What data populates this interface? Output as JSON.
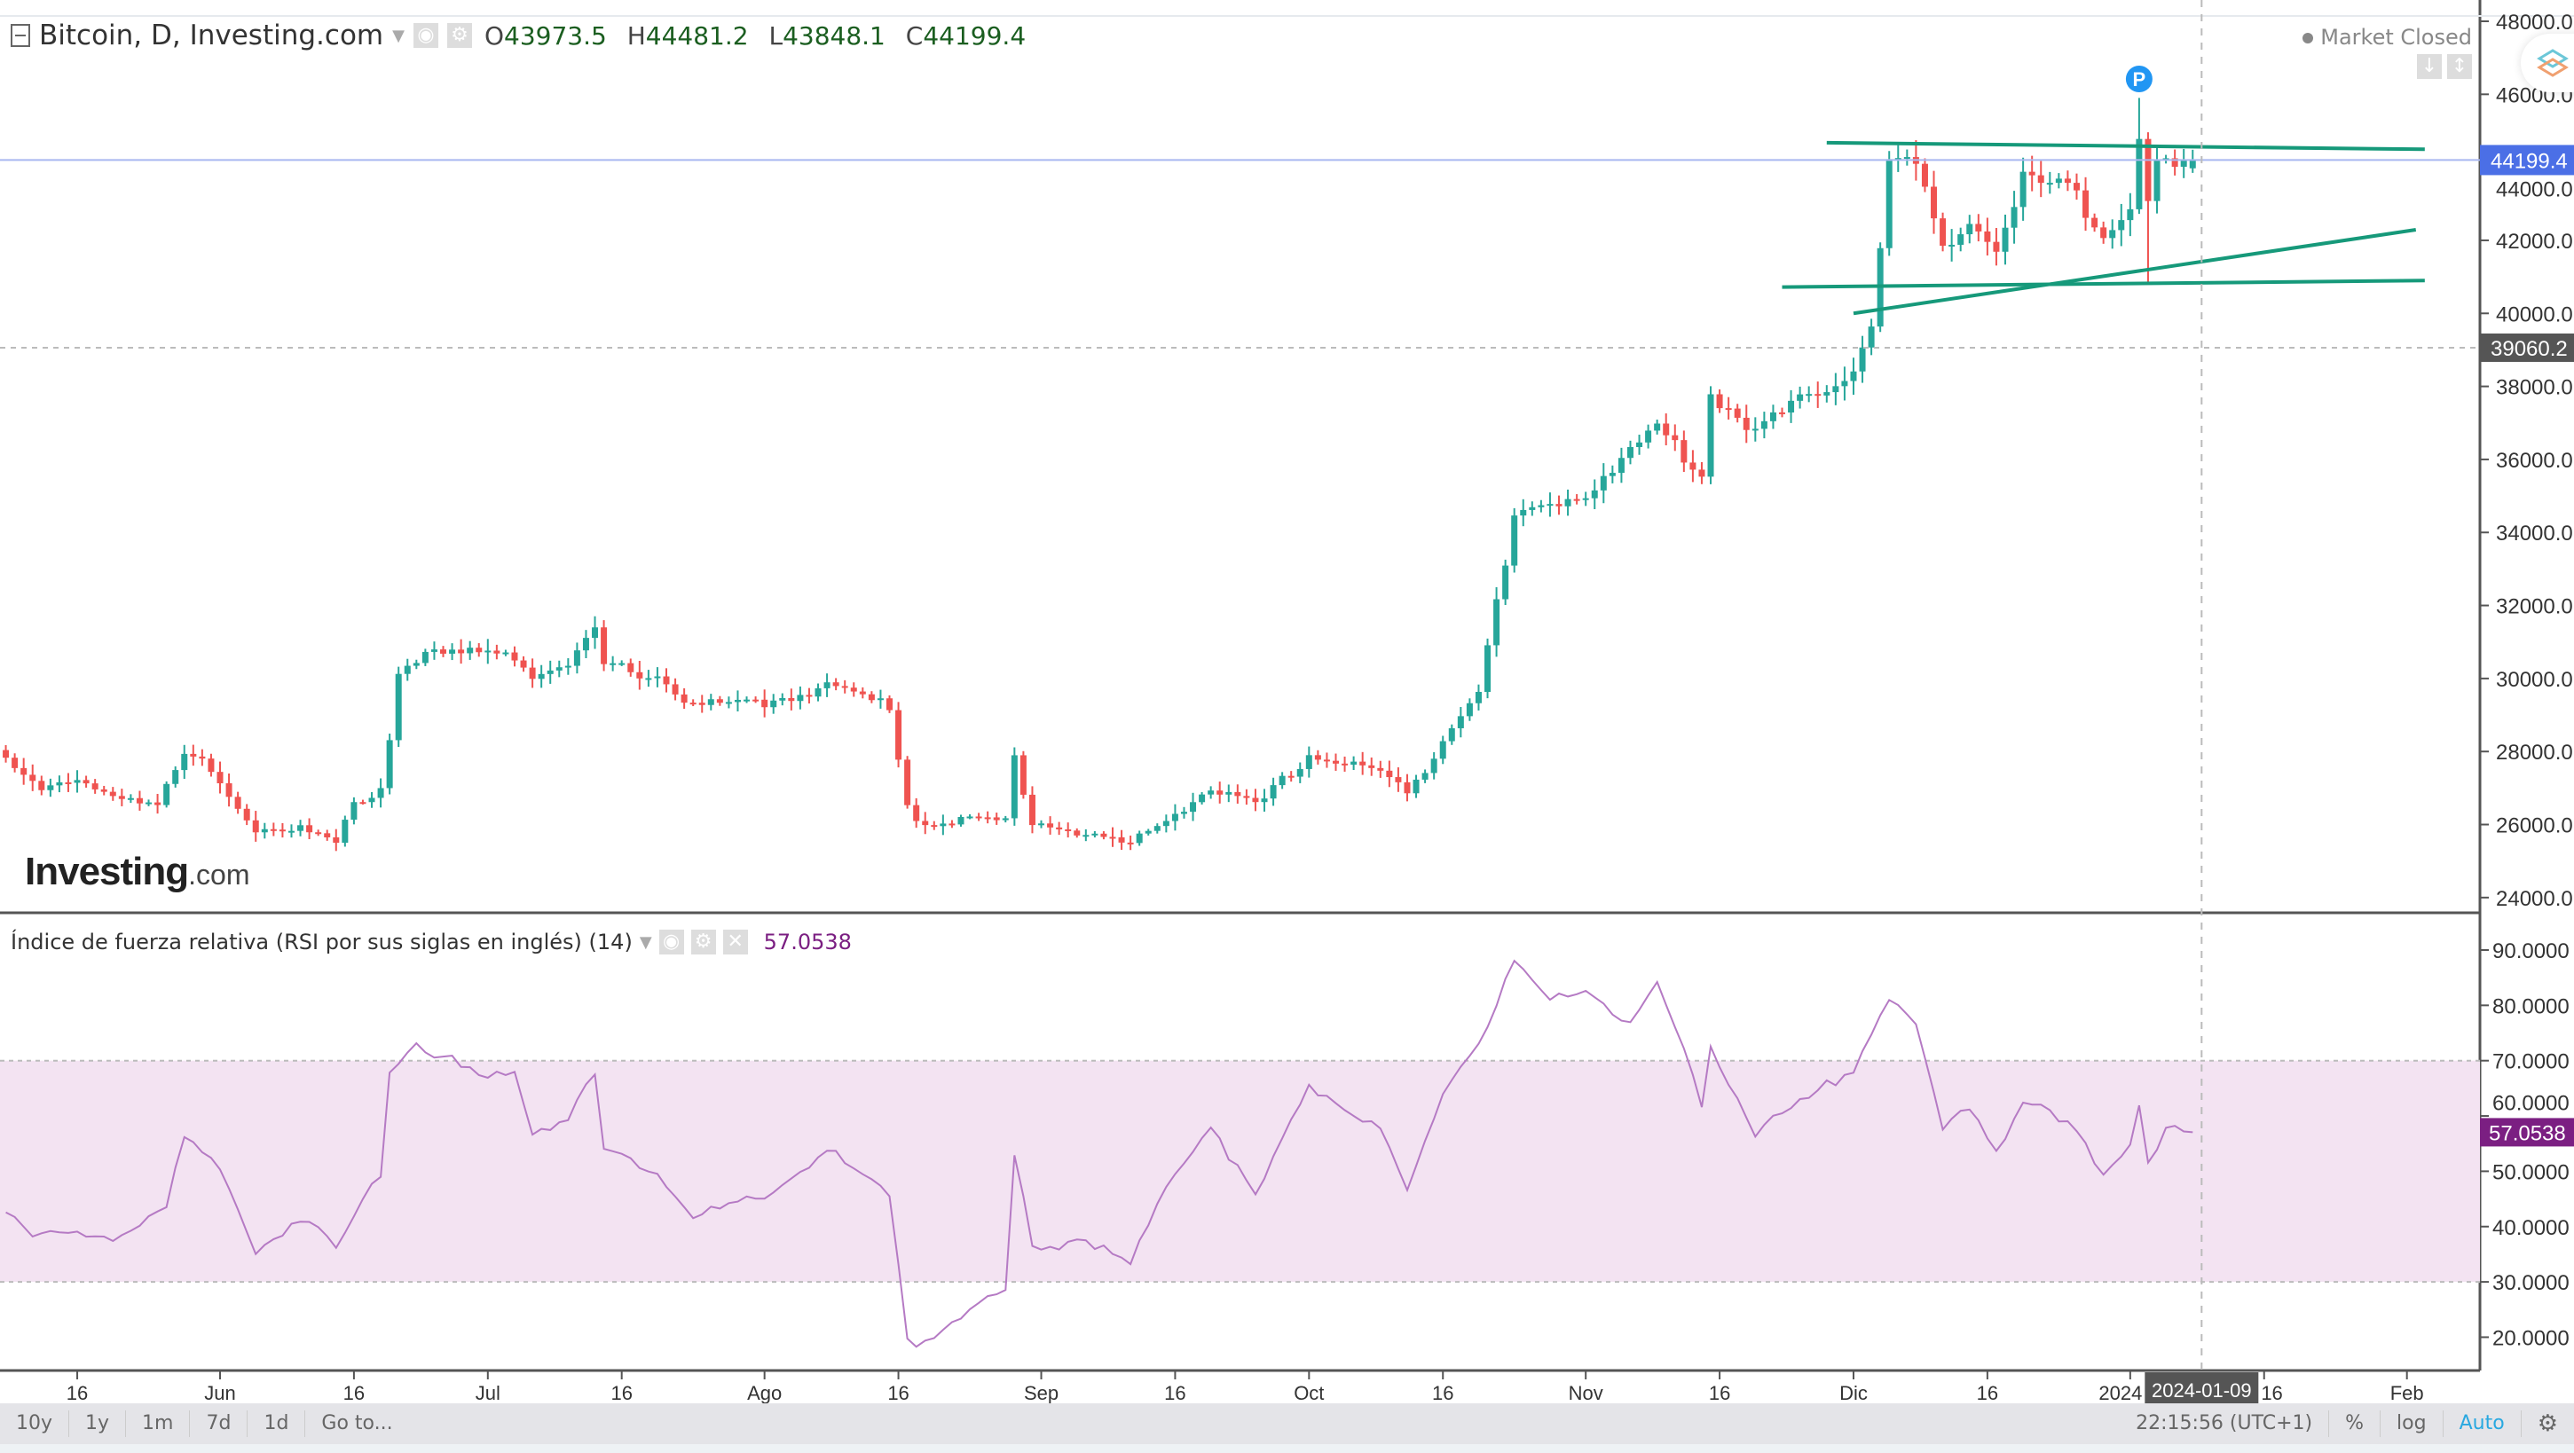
{
  "header": {
    "title": "Bitcoin, D, Investing.com",
    "open_label": "O",
    "open": "43973.5",
    "high_label": "H",
    "high": "44481.2",
    "low_label": "L",
    "low": "43848.1",
    "close_label": "C",
    "close": "44199.4"
  },
  "status": {
    "market": "Market Closed"
  },
  "logo": {
    "brand": "Investing",
    "suffix": ".com"
  },
  "rsi_header": {
    "title": "Índice de fuerza relativa (RSI por sus siglas en inglés) (14)",
    "value": "57.0538"
  },
  "toolbar": {
    "ranges": [
      "10y",
      "1y",
      "1m",
      "7d",
      "1d"
    ],
    "goto": "Go to...",
    "clock": "22:15:56 (UTC+1)",
    "percent": "%",
    "log": "log",
    "auto": "Auto"
  },
  "colors": {
    "up": "#26a69a",
    "down": "#ef5350",
    "trend": "#16997a",
    "rsi_line": "#b57ac4",
    "rsi_band": "#f3e3f2",
    "last_price": "#4b6fe6",
    "crosshair_price": "#555555"
  },
  "chart_data": {
    "type": "candlestick",
    "title": "Bitcoin, D, Investing.com",
    "price_axis": {
      "ticks": [
        24000,
        26000,
        28000,
        30000,
        32000,
        34000,
        36000,
        38000,
        40000,
        42000,
        44000,
        46000,
        48000
      ],
      "ylim": [
        23700,
        48500
      ]
    },
    "last_price": "44199.4",
    "crosshair_price": "39060.2",
    "crosshair_date": "2024-01-09",
    "last_candle": {
      "date": "2024-01-08",
      "open": 43973.5,
      "high": 44481.2,
      "low": 43848.1,
      "close": 44199.4
    },
    "close_anchors": [
      [
        "2023-05-08",
        27900
      ],
      [
        "2023-05-10",
        27460
      ],
      [
        "2023-05-12",
        26900
      ],
      [
        "2023-05-16",
        27100
      ],
      [
        "2023-05-20",
        26900
      ],
      [
        "2023-05-25",
        26560
      ],
      [
        "2023-05-28",
        27800
      ],
      [
        "2023-05-30",
        27700
      ],
      [
        "2023-06-01",
        27100
      ],
      [
        "2023-06-05",
        25900
      ],
      [
        "2023-06-10",
        25900
      ],
      [
        "2023-06-14",
        25440
      ],
      [
        "2023-06-16",
        26560
      ],
      [
        "2023-06-19",
        27000
      ],
      [
        "2023-06-20",
        28360
      ],
      [
        "2023-06-21",
        30150
      ],
      [
        "2023-06-23",
        30600
      ],
      [
        "2023-07-01",
        30700
      ],
      [
        "2023-07-03",
        30830
      ],
      [
        "2023-07-06",
        30150
      ],
      [
        "2023-07-10",
        30300
      ],
      [
        "2023-07-13",
        31280
      ],
      [
        "2023-07-14",
        30380
      ],
      [
        "2023-07-20",
        30060
      ],
      [
        "2023-07-24",
        29250
      ],
      [
        "2023-08-01",
        29340
      ],
      [
        "2023-08-08",
        29800
      ],
      [
        "2023-08-15",
        29250
      ],
      [
        "2023-08-17",
        26560
      ],
      [
        "2023-08-18",
        26100
      ],
      [
        "2023-08-28",
        26100
      ],
      [
        "2023-08-29",
        27800
      ],
      [
        "2023-08-31",
        26100
      ],
      [
        "2023-09-11",
        25440
      ],
      [
        "2023-09-16",
        26330
      ],
      [
        "2023-09-20",
        27000
      ],
      [
        "2023-09-25",
        26470
      ],
      [
        "2023-10-01",
        27900
      ],
      [
        "2023-10-09",
        27460
      ],
      [
        "2023-10-12",
        26790
      ],
      [
        "2023-10-16",
        28360
      ],
      [
        "2023-10-20",
        29800
      ],
      [
        "2023-10-23",
        33080
      ],
      [
        "2023-10-24",
        34420
      ],
      [
        "2023-11-01",
        35100
      ],
      [
        "2023-11-09",
        36900
      ],
      [
        "2023-11-14",
        35550
      ],
      [
        "2023-11-15",
        37800
      ],
      [
        "2023-11-20",
        36800
      ],
      [
        "2023-11-25",
        37570
      ],
      [
        "2023-12-01",
        38470
      ],
      [
        "2023-12-03",
        39820
      ],
      [
        "2023-12-04",
        41840
      ],
      [
        "2023-12-05",
        44090
      ],
      [
        "2023-12-08",
        44090
      ],
      [
        "2023-12-11",
        41620
      ],
      [
        "2023-12-14",
        42520
      ],
      [
        "2023-12-17",
        41840
      ],
      [
        "2023-12-20",
        43640
      ],
      [
        "2023-12-25",
        43410
      ],
      [
        "2023-12-29",
        42300
      ],
      [
        "2024-01-01",
        42970
      ],
      [
        "2024-01-02",
        44900
      ],
      [
        "2024-01-03",
        42970
      ],
      [
        "2024-01-04",
        44090
      ],
      [
        "2024-01-05",
        44000
      ],
      [
        "2024-01-07",
        43973.5
      ]
    ],
    "trend_lines": [
      {
        "from": [
          "2023-11-28",
          44674
        ],
        "to": [
          "2024-02-03",
          44494
        ]
      },
      {
        "from": [
          "2023-12-01",
          40000
        ],
        "to": [
          "2024-02-02",
          42290
        ]
      },
      {
        "from": [
          "2023-11-23",
          40720
        ],
        "to": [
          "2024-02-03",
          40900
        ]
      }
    ],
    "marker": {
      "date": "2024-01-02",
      "label": "P"
    },
    "x_ticks": [
      [
        "2023-05-16",
        "16"
      ],
      [
        "2023-06-01",
        "Jun"
      ],
      [
        "2023-06-16",
        "16"
      ],
      [
        "2023-07-01",
        "Jul"
      ],
      [
        "2023-07-16",
        "16"
      ],
      [
        "2023-08-01",
        "Ago"
      ],
      [
        "2023-08-16",
        "16"
      ],
      [
        "2023-09-01",
        "Sep"
      ],
      [
        "2023-09-16",
        "16"
      ],
      [
        "2023-10-01",
        "Oct"
      ],
      [
        "2023-10-16",
        "16"
      ],
      [
        "2023-11-01",
        "Nov"
      ],
      [
        "2023-11-16",
        "16"
      ],
      [
        "2023-12-01",
        "Dic"
      ],
      [
        "2023-12-16",
        "16"
      ],
      [
        "2024-01-01",
        "2024"
      ],
      [
        "2024-01-16",
        "16"
      ],
      [
        "2024-02-01",
        "Feb"
      ]
    ],
    "rsi": {
      "period": 14,
      "ticks": [
        20,
        30,
        40,
        50,
        60,
        70,
        80,
        90
      ],
      "band": [
        30,
        70
      ],
      "value": "57.0538",
      "anchors": [
        [
          "2023-05-08",
          43
        ],
        [
          "2023-05-12",
          38
        ],
        [
          "2023-05-20",
          38
        ],
        [
          "2023-05-26",
          44
        ],
        [
          "2023-05-28",
          56
        ],
        [
          "2023-06-01",
          50
        ],
        [
          "2023-06-05",
          35.5
        ],
        [
          "2023-06-10",
          42
        ],
        [
          "2023-06-14",
          36
        ],
        [
          "2023-06-19",
          50
        ],
        [
          "2023-06-20",
          69
        ],
        [
          "2023-06-23",
          73.4
        ],
        [
          "2023-07-01",
          66
        ],
        [
          "2023-07-04",
          69
        ],
        [
          "2023-07-06",
          57
        ],
        [
          "2023-07-10",
          60
        ],
        [
          "2023-07-13",
          67.4
        ],
        [
          "2023-07-14",
          54
        ],
        [
          "2023-07-20",
          50
        ],
        [
          "2023-07-24",
          42
        ],
        [
          "2023-08-01",
          45
        ],
        [
          "2023-08-08",
          54
        ],
        [
          "2023-08-15",
          45
        ],
        [
          "2023-08-17",
          20
        ],
        [
          "2023-08-18",
          19
        ],
        [
          "2023-08-22",
          23
        ],
        [
          "2023-08-28",
          28
        ],
        [
          "2023-08-29",
          52.8
        ],
        [
          "2023-08-31",
          36
        ],
        [
          "2023-09-06",
          38
        ],
        [
          "2023-09-11",
          33
        ],
        [
          "2023-09-16",
          50
        ],
        [
          "2023-09-20",
          58.8
        ],
        [
          "2023-09-25",
          45
        ],
        [
          "2023-10-01",
          66
        ],
        [
          "2023-10-09",
          57
        ],
        [
          "2023-10-12",
          45.6
        ],
        [
          "2023-10-16",
          64.5
        ],
        [
          "2023-10-20",
          73.4
        ],
        [
          "2023-10-24",
          87.3
        ],
        [
          "2023-10-28",
          80
        ],
        [
          "2023-11-01",
          83.8
        ],
        [
          "2023-11-06",
          76
        ],
        [
          "2023-11-09",
          84
        ],
        [
          "2023-11-14",
          62.4
        ],
        [
          "2023-11-15",
          73
        ],
        [
          "2023-11-20",
          57
        ],
        [
          "2023-11-25",
          62
        ],
        [
          "2023-12-01",
          69
        ],
        [
          "2023-12-05",
          81.7
        ],
        [
          "2023-12-08",
          75.5
        ],
        [
          "2023-12-11",
          57.5
        ],
        [
          "2023-12-14",
          62
        ],
        [
          "2023-12-17",
          54
        ],
        [
          "2023-12-20",
          63
        ],
        [
          "2023-12-25",
          58
        ],
        [
          "2023-12-29",
          50.5
        ],
        [
          "2024-01-01",
          55
        ],
        [
          "2024-01-02",
          63
        ],
        [
          "2024-01-03",
          52.6
        ],
        [
          "2024-01-05",
          57
        ],
        [
          "2024-01-08",
          57.05
        ]
      ]
    }
  }
}
